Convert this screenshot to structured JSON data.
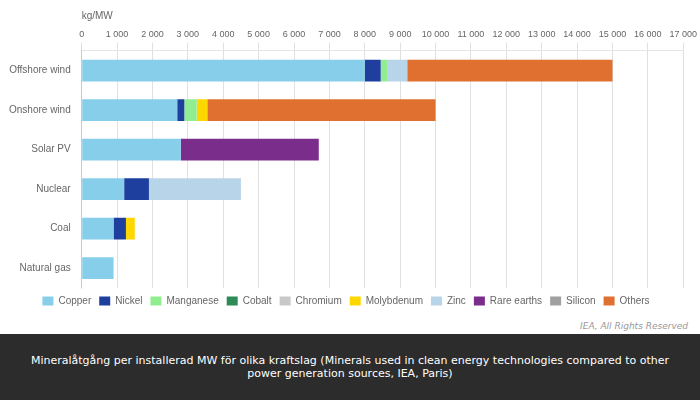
{
  "chart_data": {
    "type": "bar",
    "orientation": "horizontal",
    "stacked": true,
    "xlabel": "kg/MW",
    "annotations": [
      "IEA, All Rights Reserved"
    ],
    "caption": "Mineralåtgång per installerad MW för olika kraftslag (Minerals used in clean energy technologies compared to other power generation sources, IEA, Paris)",
    "categories": [
      "Natural gas",
      "Coal",
      "Nuclear",
      "Solar PV",
      "Onshore wind",
      "Offshore wind"
    ],
    "series": [
      {
        "name": "Copper",
        "color": "#87CEEB",
        "values": [
          900,
          900,
          1200,
          2800,
          2700,
          8000
        ]
      },
      {
        "name": "Nickel",
        "color": "#1F3F9F",
        "values": [
          0,
          350,
          700,
          0,
          200,
          450
        ]
      },
      {
        "name": "Manganese",
        "color": "#90EE90",
        "values": [
          0,
          0,
          0,
          0,
          350,
          200
        ]
      },
      {
        "name": "Cobalt",
        "color": "#2E8B57",
        "values": [
          0,
          0,
          0,
          0,
          0,
          0
        ]
      },
      {
        "name": "Chromium",
        "color": "#C8C8C8",
        "values": [
          0,
          0,
          0,
          0,
          0,
          0
        ]
      },
      {
        "name": "Molybdenum",
        "color": "#FFD700",
        "values": [
          0,
          250,
          0,
          0,
          300,
          0
        ]
      },
      {
        "name": "Zinc",
        "color": "#B8D4E8",
        "values": [
          0,
          0,
          2600,
          0,
          0,
          550
        ]
      },
      {
        "name": "Rare earths",
        "color": "#7B2D8B",
        "values": [
          0,
          0,
          0,
          3900,
          0,
          0
        ]
      },
      {
        "name": "Silicon",
        "color": "#A0A0A0",
        "values": [
          0,
          0,
          0,
          0,
          0,
          0
        ]
      },
      {
        "name": "Others",
        "color": "#E07030",
        "values": [
          0,
          0,
          0,
          0,
          6450,
          5800
        ]
      }
    ],
    "xlim": [
      0,
      17000
    ],
    "xticks": [
      0,
      {
        "value": 1000,
        "label": "1 000"
      },
      {
        "value": 2000,
        "label": "2 000"
      },
      {
        "value": 3000,
        "label": "3 000"
      },
      {
        "value": 4000,
        "label": "4 000"
      },
      {
        "value": 5000,
        "label": "5 000"
      },
      {
        "value": 6000,
        "label": "6 000"
      },
      {
        "value": 7000,
        "label": "7 000"
      },
      {
        "value": 8000,
        "label": "8 000"
      },
      {
        "value": 9000,
        "label": "9 000"
      },
      {
        "value": 10000,
        "label": "10 000"
      },
      {
        "value": 11000,
        "label": "11 000"
      },
      {
        "value": 12000,
        "label": "12 000"
      },
      {
        "value": 13000,
        "label": "13 000"
      },
      {
        "value": 14000,
        "label": "14 000"
      },
      {
        "value": 15000,
        "label": "15 000"
      },
      {
        "value": 16000,
        "label": "16 000"
      },
      {
        "value": 17000,
        "label": "17 000"
      }
    ],
    "grid": true,
    "legend": "bottom"
  }
}
